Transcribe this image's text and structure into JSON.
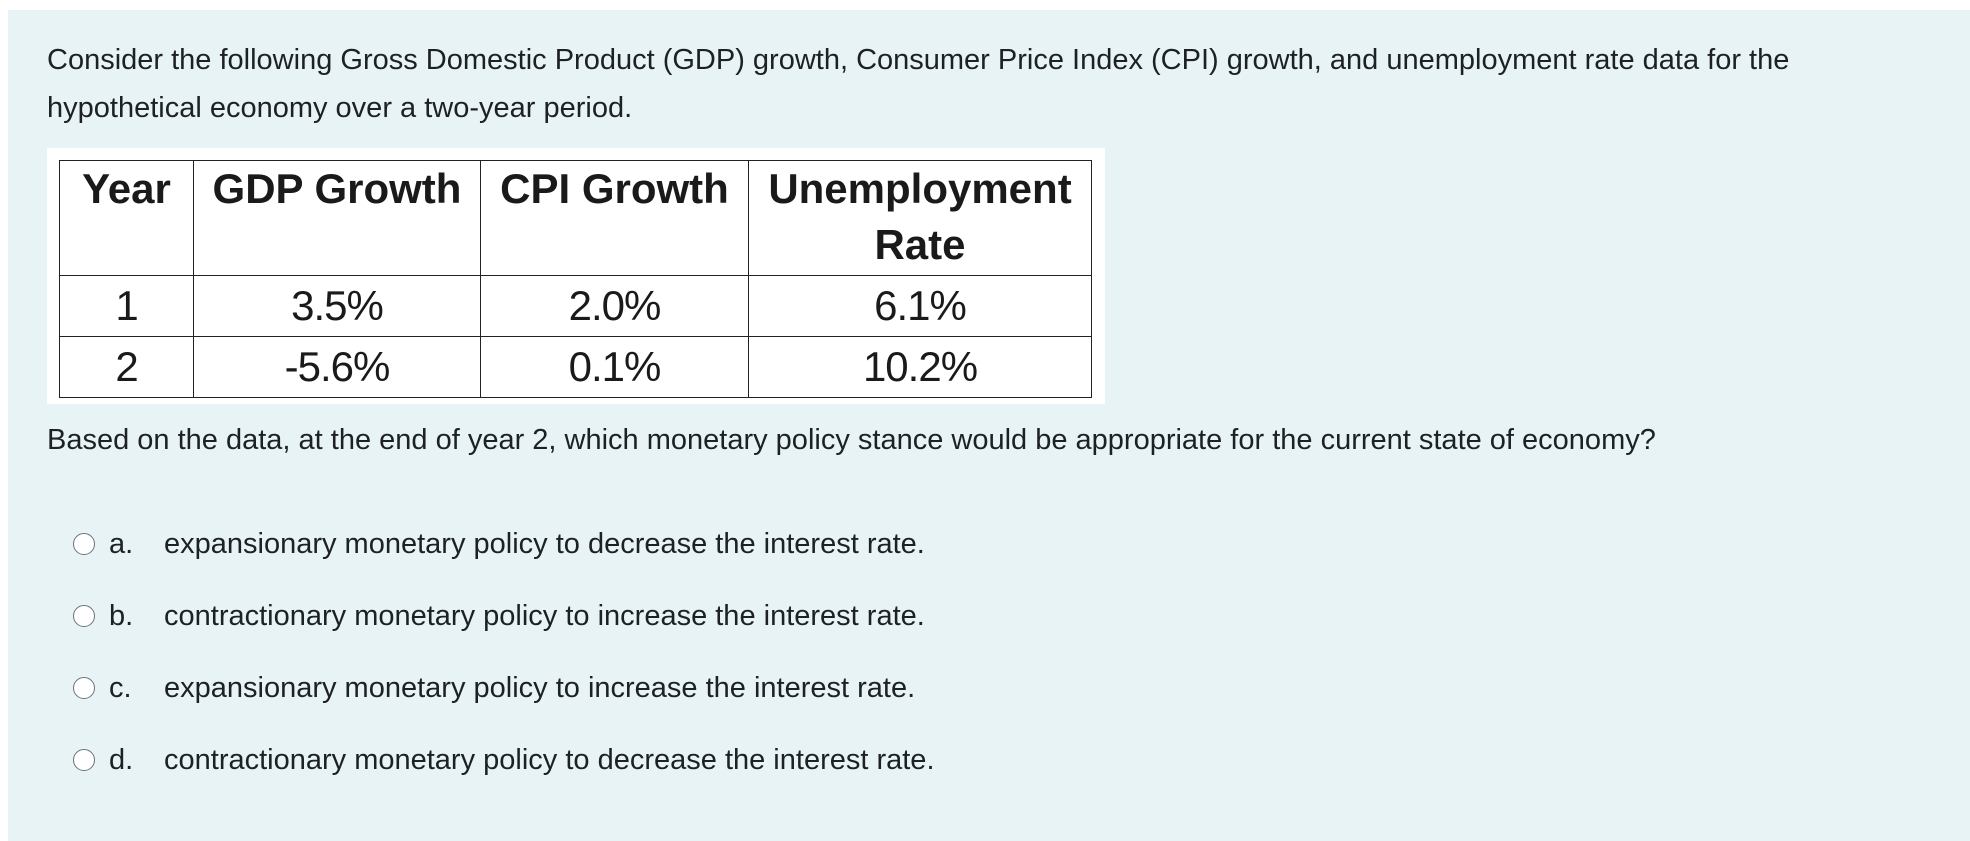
{
  "question": {
    "intro": "Consider the following Gross Domestic Product (GDP) growth, Consumer Price Index (CPI) growth, and unemployment rate data for the hypothetical economy over a two-year period.",
    "prompt": "Based on the data, at the end of year 2, which monetary policy stance would be appropriate for the current state of economy?"
  },
  "table": {
    "headers": [
      "Year",
      "GDP Growth",
      "CPI Growth",
      "Unemployment Rate"
    ],
    "rows": [
      [
        "1",
        "3.5%",
        "2.0%",
        "6.1%"
      ],
      [
        "2",
        "-5.6%",
        "0.1%",
        "10.2%"
      ]
    ]
  },
  "options": [
    {
      "letter": "a.",
      "text": "expansionary monetary policy to decrease the interest rate."
    },
    {
      "letter": "b.",
      "text": "contractionary monetary policy to increase the interest rate."
    },
    {
      "letter": "c.",
      "text": "expansionary monetary policy to increase the interest rate."
    },
    {
      "letter": "d.",
      "text": "contractionary monetary policy to decrease the interest rate."
    }
  ],
  "colors": {
    "card_background": "#e7f3f5",
    "text": "#1d2125"
  }
}
